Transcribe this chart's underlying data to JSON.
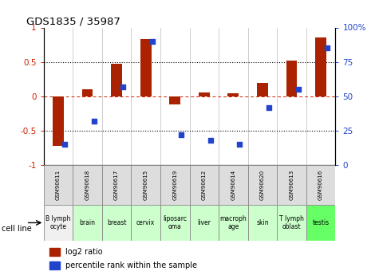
{
  "title": "GDS1835 / 35987",
  "samples": [
    "GSM90611",
    "GSM90618",
    "GSM90617",
    "GSM90615",
    "GSM90619",
    "GSM90612",
    "GSM90614",
    "GSM90620",
    "GSM90613",
    "GSM90616"
  ],
  "cell_lines": [
    "B lymph\nocyte",
    "brain",
    "breast",
    "cervix",
    "liposarc\noma",
    "liver",
    "macroph\nage",
    "skin",
    "T lymph\noblast",
    "testis"
  ],
  "cell_line_colors": [
    "#f0f0f0",
    "#ccffcc",
    "#ccffcc",
    "#ccffcc",
    "#ccffcc",
    "#ccffcc",
    "#ccffcc",
    "#ccffcc",
    "#ccffcc",
    "#66ff66"
  ],
  "log2_ratio": [
    -0.72,
    0.1,
    0.47,
    0.83,
    -0.12,
    0.05,
    0.04,
    0.2,
    0.52,
    0.85
  ],
  "percentile_rank": [
    15,
    32,
    57,
    90,
    22,
    18,
    15,
    42,
    55,
    85
  ],
  "bar_color": "#aa2200",
  "dot_color": "#2244cc",
  "bg_color": "#ffffff",
  "ylim_left": [
    -1,
    1
  ],
  "ylim_right": [
    0,
    100
  ],
  "yticks_left": [
    -1,
    -0.5,
    0,
    0.5,
    1
  ],
  "yticks_right": [
    0,
    25,
    50,
    75,
    100
  ],
  "ytick_labels_left": [
    "-1",
    "-0.5",
    "0",
    "0.5",
    "1"
  ],
  "ytick_labels_right": [
    "0",
    "25",
    "50",
    "75",
    "100%"
  ],
  "legend_labels": [
    "log2 ratio",
    "percentile rank within the sample"
  ],
  "cell_line_label": "cell line"
}
